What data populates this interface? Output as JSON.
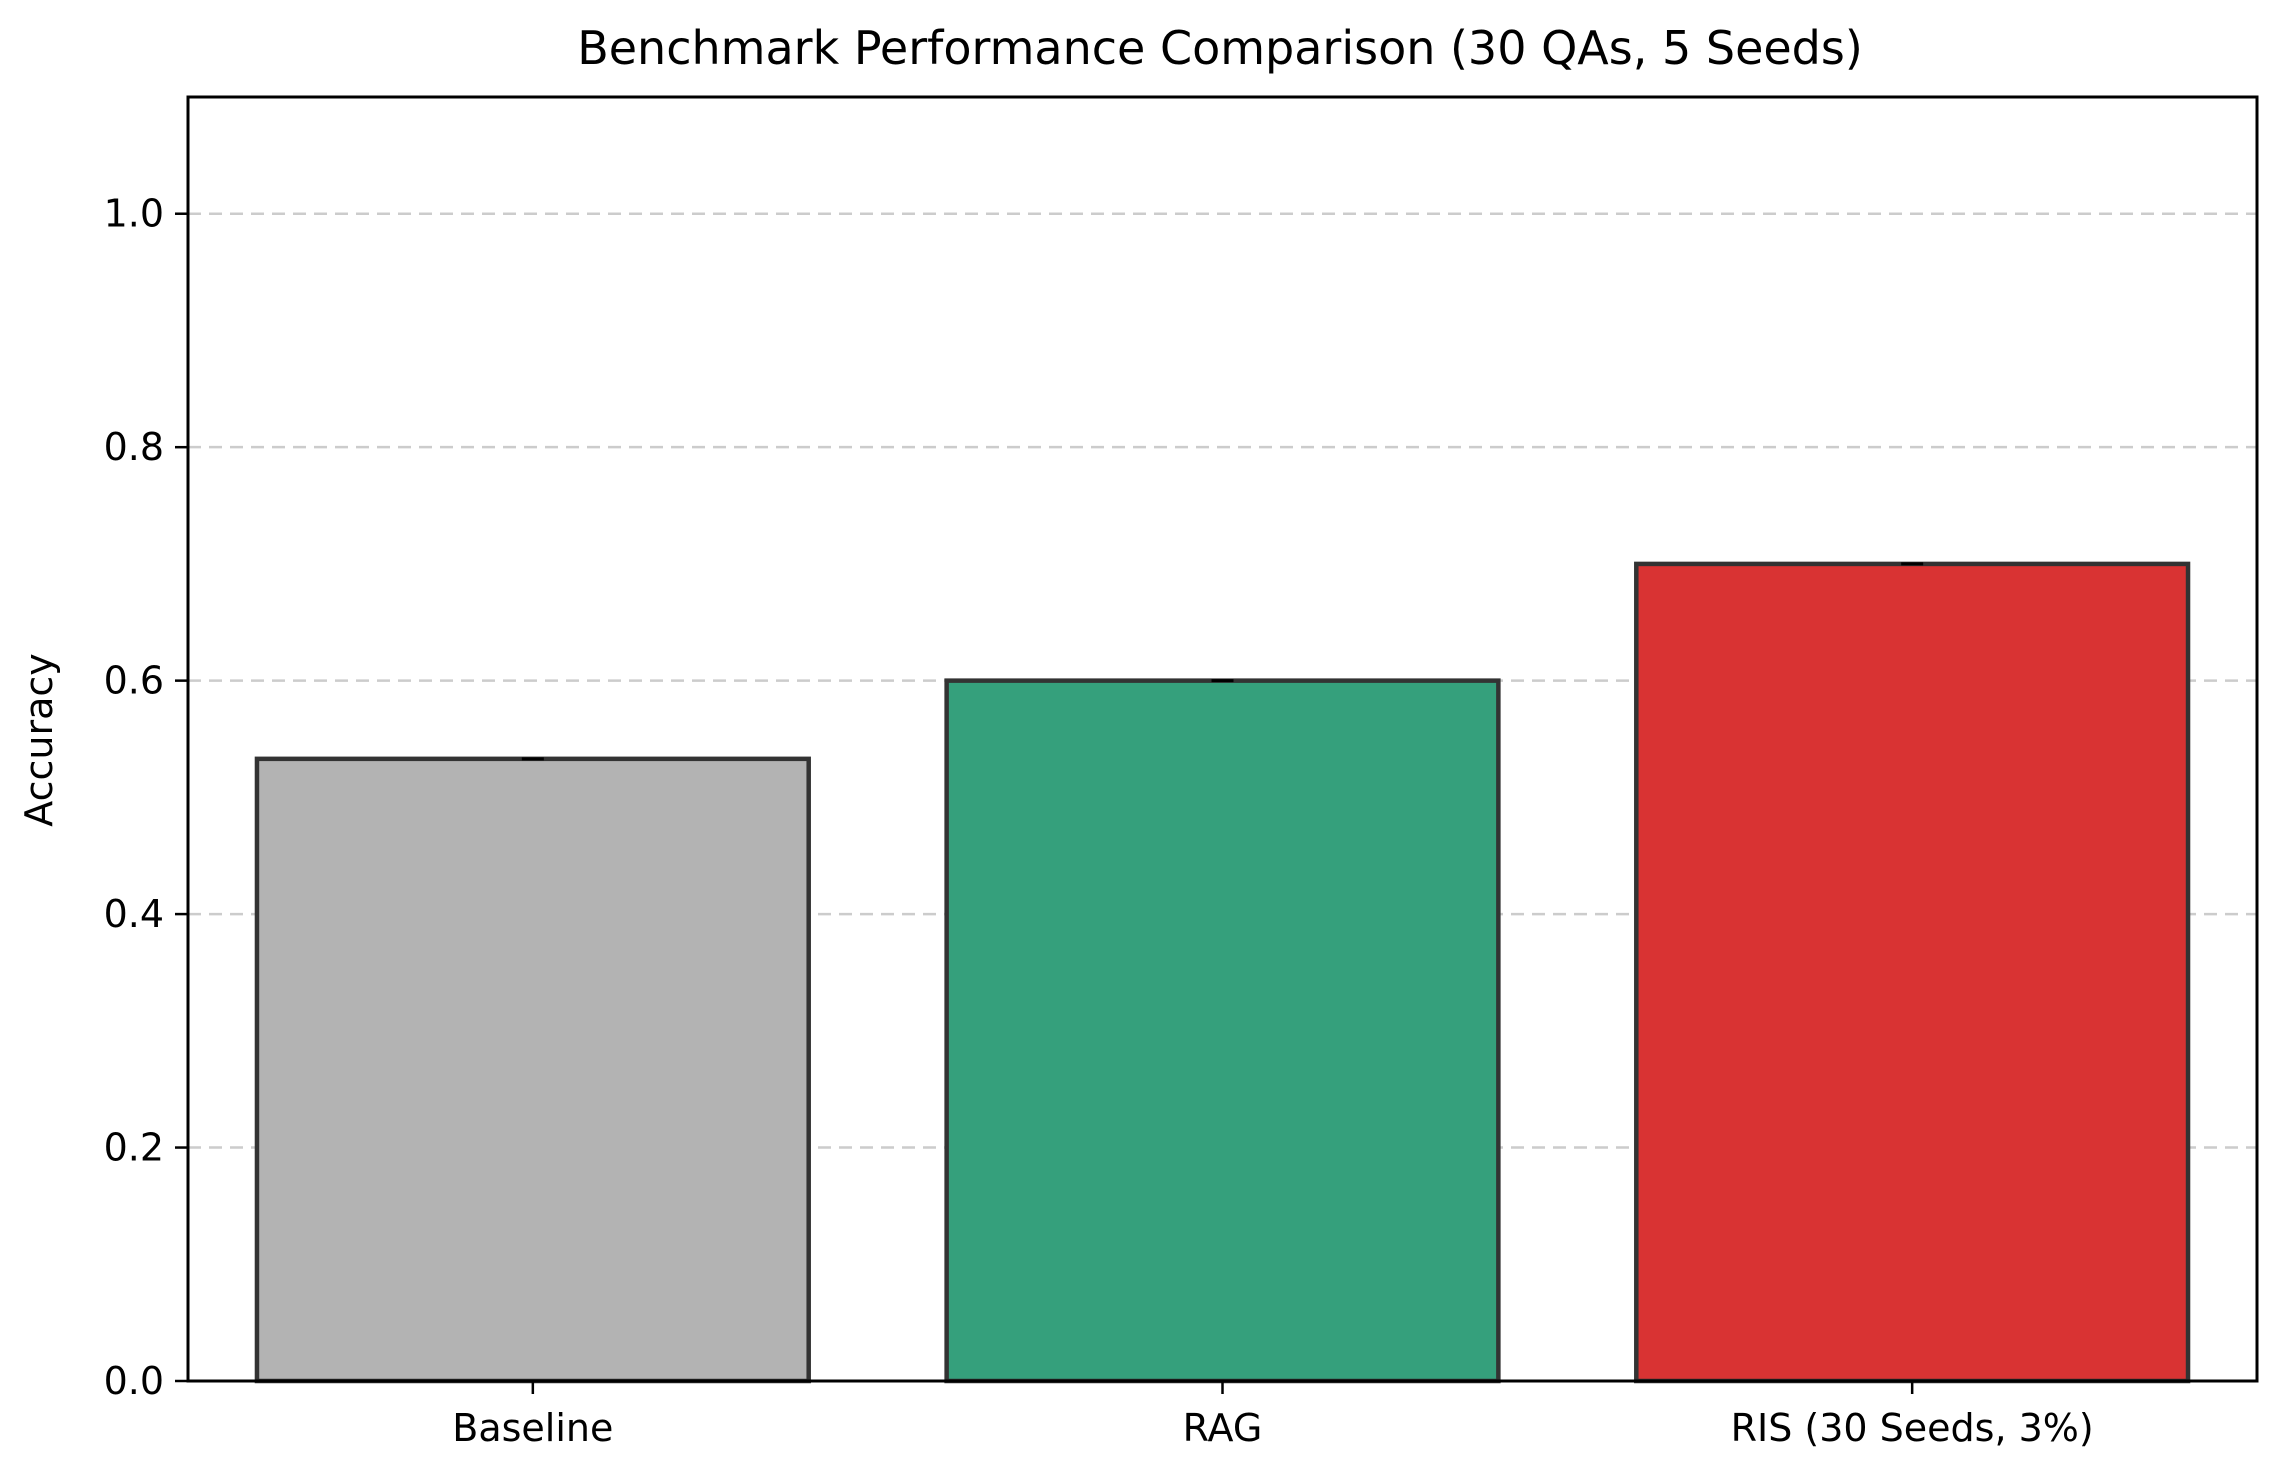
{
  "chart_data": {
    "type": "bar",
    "title": "Benchmark Performance Comparison (30 QAs, 5 Seeds)",
    "xlabel": "",
    "ylabel": "Accuracy",
    "categories": [
      "Baseline",
      "RAG",
      "RIS (30 Seeds, 3%)"
    ],
    "values": [
      0.533,
      0.6,
      0.7
    ],
    "error": [
      0.0,
      0.0,
      0.0
    ],
    "colors": [
      "#b3b3b3",
      "#35a07c",
      "#d93333"
    ],
    "edge_color": "#333333",
    "ylim": [
      0,
      1.1
    ],
    "yticks": [
      0.0,
      0.2,
      0.4,
      0.6,
      0.8,
      1.0
    ],
    "ytick_labels": [
      "0.0",
      "0.2",
      "0.4",
      "0.6",
      "0.8",
      "1.0"
    ],
    "grid": "y-axis dashed",
    "legend": "none"
  }
}
